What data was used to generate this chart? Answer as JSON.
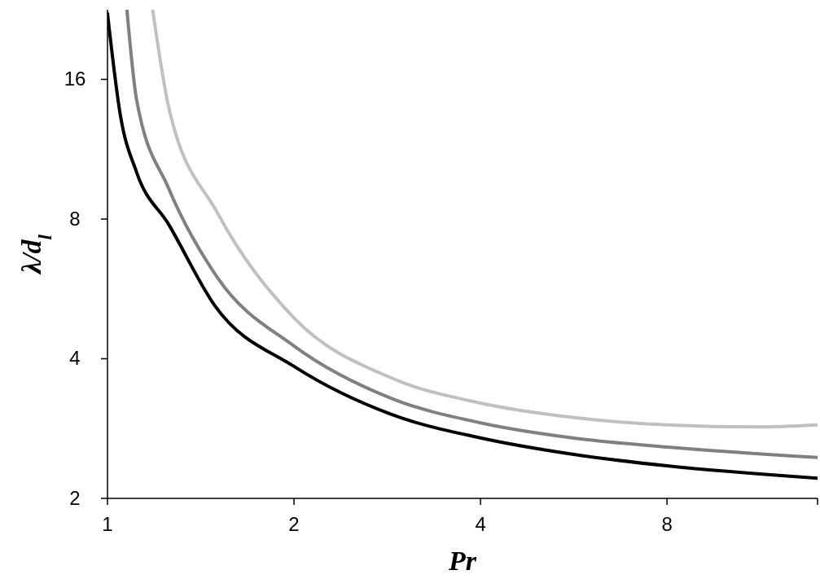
{
  "chart_data": {
    "type": "line",
    "xlabel": "Pr",
    "ylabel": "λ/d$_{l}$",
    "log": "xy",
    "xlim": [
      1,
      14
    ],
    "ylim": [
      2,
      22.6
    ],
    "xticks": [
      1,
      2,
      4,
      8
    ],
    "yticks": [
      2,
      4,
      8,
      16
    ],
    "grid": false,
    "marker": "none",
    "line_style": "solid",
    "series": [
      {
        "color": "#000000",
        "x": [
          1,
          1.049,
          1.114,
          1.256,
          1.491,
          2,
          2.88,
          4,
          5.63,
          8,
          14
        ],
        "values": [
          22.2,
          13.4,
          10.1,
          7.78,
          5.2,
          3.85,
          3.03,
          2.7,
          2.49,
          2.35,
          2.21
        ]
      },
      {
        "color": "#808080",
        "x": [
          1.075,
          1.114,
          1.256,
          1.504,
          2,
          2.88,
          4,
          5.63,
          8,
          14
        ],
        "values": [
          22.6,
          14.5,
          9.3,
          5.99,
          4.26,
          3.28,
          2.91,
          2.7,
          2.58,
          2.45
        ]
      },
      {
        "color": "#c0c0c0",
        "x": [
          1.183,
          1.256,
          1.504,
          2,
          2.88,
          4,
          5.63,
          8,
          11.2,
          14
        ],
        "values": [
          22.6,
          13.9,
          8.26,
          4.9,
          3.63,
          3.21,
          2.99,
          2.88,
          2.85,
          2.88
        ]
      }
    ]
  }
}
